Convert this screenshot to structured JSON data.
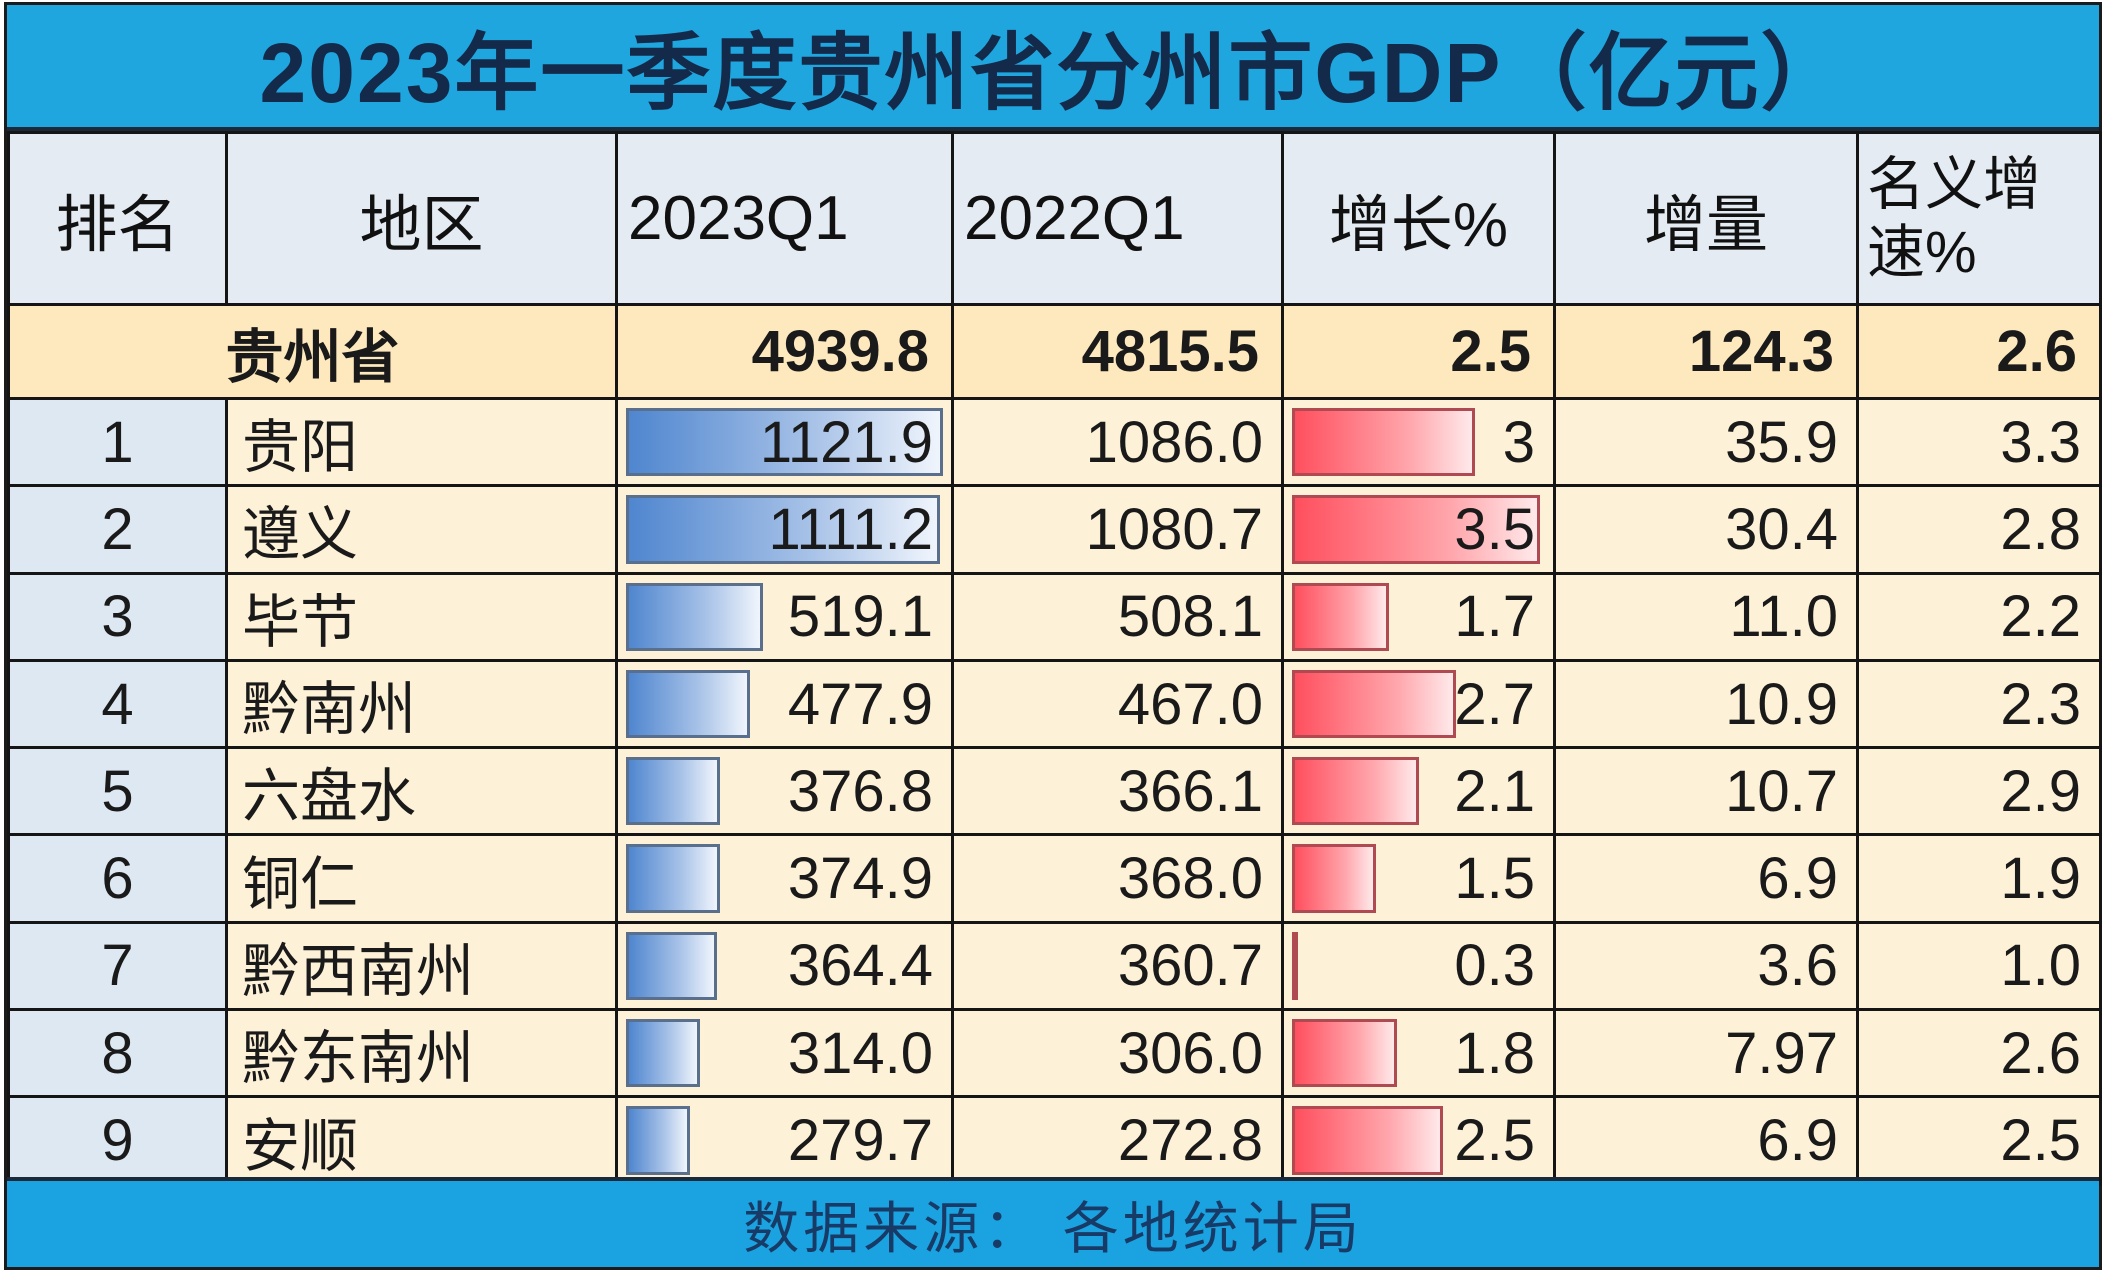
{
  "title": "2023年一季度贵州省分州市GDP（亿元）",
  "headers": {
    "rank": "排名",
    "region": "地区",
    "q2023": "2023Q1",
    "q2022": "2022Q1",
    "growth": "增长%",
    "increment": "增量",
    "nominal_line1": "名义增",
    "nominal_line2": "速%"
  },
  "province": {
    "name": "贵州省",
    "q2023": "4939.8",
    "q2022": "4815.5",
    "growth": "2.5",
    "increment": "124.3",
    "nominal": "2.6"
  },
  "rows": [
    {
      "rank": "1",
      "region": "贵阳",
      "q2023": "1121.9",
      "q2022": "1086.0",
      "growth": "3",
      "increment": "35.9",
      "nominal": "3.3",
      "bar_q2023_pct": 100,
      "bar_growth_pct": 74
    },
    {
      "rank": "2",
      "region": "遵义",
      "q2023": "1111.2",
      "q2022": "1080.7",
      "growth": "3.5",
      "increment": "30.4",
      "nominal": "2.8",
      "bar_q2023_pct": 99,
      "bar_growth_pct": 98
    },
    {
      "rank": "3",
      "region": "毕节",
      "q2023": "519.1",
      "q2022": "508.1",
      "growth": "1.7",
      "increment": "11.0",
      "nominal": "2.2",
      "bar_q2023_pct": 46,
      "bar_growth_pct": 42
    },
    {
      "rank": "4",
      "region": "黔南州",
      "q2023": "477.9",
      "q2022": "467.0",
      "growth": "2.7",
      "increment": "10.9",
      "nominal": "2.3",
      "bar_q2023_pct": 42,
      "bar_growth_pct": 67
    },
    {
      "rank": "5",
      "region": "六盘水",
      "q2023": "376.8",
      "q2022": "366.1",
      "growth": "2.1",
      "increment": "10.7",
      "nominal": "2.9",
      "bar_q2023_pct": 33,
      "bar_growth_pct": 53
    },
    {
      "rank": "6",
      "region": "铜仁",
      "q2023": "374.9",
      "q2022": "368.0",
      "growth": "1.5",
      "increment": "6.9",
      "nominal": "1.9",
      "bar_q2023_pct": 33,
      "bar_growth_pct": 37
    },
    {
      "rank": "7",
      "region": "黔西南州",
      "q2023": "364.4",
      "q2022": "360.7",
      "growth": "0.3",
      "increment": "3.6",
      "nominal": "1.0",
      "bar_q2023_pct": 32,
      "bar_growth_pct": 7
    },
    {
      "rank": "8",
      "region": "黔东南州",
      "q2023": "314.0",
      "q2022": "306.0",
      "growth": "1.8",
      "increment": "7.97",
      "nominal": "2.6",
      "bar_q2023_pct": 27,
      "bar_growth_pct": 45
    },
    {
      "rank": "9",
      "region": "安顺",
      "q2023": "279.7",
      "q2022": "272.8",
      "growth": "2.5",
      "increment": "6.9",
      "nominal": "2.5",
      "bar_q2023_pct": 24,
      "bar_growth_pct": 62
    }
  ],
  "footer": "数据来源：  各地统计局",
  "colors": {
    "title_bg": "#1fa6df",
    "title_text": "#142a4a",
    "header_bg": "#e4ebf3",
    "province_bg": "#fde9bd",
    "row_bg": "#fdf2d8",
    "rank_bg": "#dde8f2",
    "bar_blue": "#4f86cf",
    "bar_red": "#ff4f5e"
  },
  "chart_data": {
    "type": "table",
    "title": "2023年一季度贵州省分州市GDP（亿元）",
    "columns": [
      "排名",
      "地区",
      "2023Q1",
      "2022Q1",
      "增长%",
      "增量",
      "名义增速%"
    ],
    "summary_row": [
      "",
      "贵州省",
      4939.8,
      4815.5,
      2.5,
      124.3,
      2.6
    ],
    "rows": [
      [
        1,
        "贵阳",
        1121.9,
        1086.0,
        3,
        35.9,
        3.3
      ],
      [
        2,
        "遵义",
        1111.2,
        1080.7,
        3.5,
        30.4,
        2.8
      ],
      [
        3,
        "毕节",
        519.1,
        508.1,
        1.7,
        11.0,
        2.2
      ],
      [
        4,
        "黔南州",
        477.9,
        467.0,
        2.7,
        10.9,
        2.3
      ],
      [
        5,
        "六盘水",
        376.8,
        366.1,
        2.1,
        10.7,
        2.9
      ],
      [
        6,
        "铜仁",
        374.9,
        368.0,
        1.5,
        6.9,
        1.9
      ],
      [
        7,
        "黔西南州",
        364.4,
        360.7,
        0.3,
        3.6,
        1.0
      ],
      [
        8,
        "黔东南州",
        314.0,
        306.0,
        1.8,
        7.97,
        2.6
      ],
      [
        9,
        "安顺",
        279.7,
        272.8,
        2.5,
        6.9,
        2.5
      ]
    ],
    "data_bars": {
      "2023Q1": "blue gradient",
      "增长%": "red gradient"
    },
    "source": "数据来源：各地统计局"
  }
}
